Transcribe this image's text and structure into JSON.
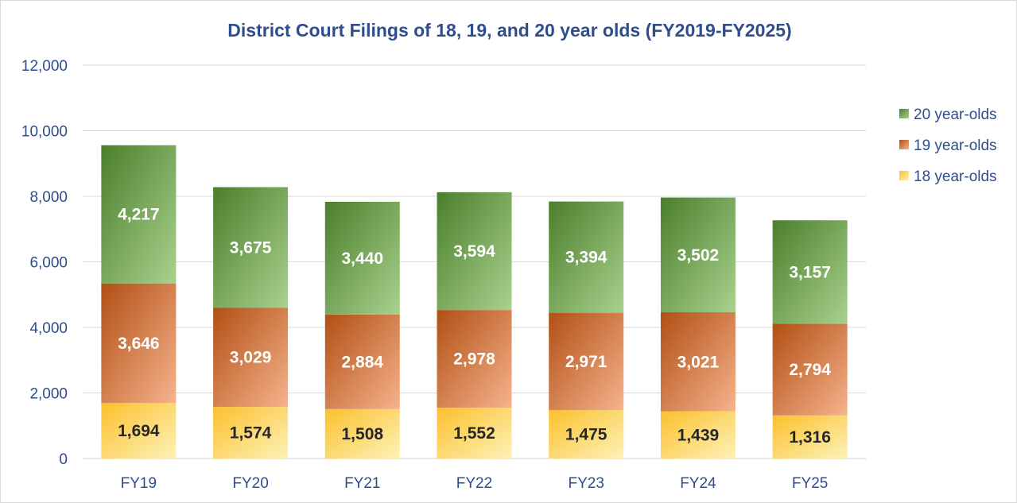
{
  "chart_data": {
    "type": "bar",
    "stacked": true,
    "title": "District Court Filings of 18, 19, and 20 year olds (FY2019-FY2025)",
    "categories": [
      "FY19",
      "FY20",
      "FY21",
      "FY22",
      "FY23",
      "FY24",
      "FY25"
    ],
    "series": [
      {
        "name": "18 year-olds",
        "values": [
          1694,
          1574,
          1508,
          1552,
          1475,
          1439,
          1316
        ],
        "labels": [
          "1,694",
          "1,574",
          "1,508",
          "1,552",
          "1,475",
          "1,439",
          "1,316"
        ],
        "color_light": "#fdf2b8",
        "color_dark": "#fbc02d"
      },
      {
        "name": "19 year-olds",
        "values": [
          3646,
          3029,
          2884,
          2978,
          2971,
          3021,
          2794
        ],
        "labels": [
          "3,646",
          "3,029",
          "2,884",
          "2,978",
          "2,971",
          "3,021",
          "2,794"
        ],
        "color_light": "#f6b38c",
        "color_dark": "#b14f14"
      },
      {
        "name": "20 year-olds",
        "values": [
          4217,
          3675,
          3440,
          3594,
          3394,
          3502,
          3157
        ],
        "labels": [
          "4,217",
          "3,675",
          "3,440",
          "3,594",
          "3,394",
          "3,502",
          "3,157"
        ],
        "color_light": "#a9d18e",
        "color_dark": "#4b7f2b"
      }
    ],
    "ylim": [
      0,
      12000
    ],
    "yticks": [
      0,
      2000,
      4000,
      6000,
      8000,
      10000,
      12000
    ],
    "ytick_labels": [
      "0",
      "2,000",
      "4,000",
      "6,000",
      "8,000",
      "10,000",
      "12,000"
    ],
    "xlabel": "",
    "ylabel": "",
    "grid": true,
    "legend_position": "right",
    "legend_order": [
      "20 year-olds",
      "19 year-olds",
      "18 year-olds"
    ],
    "colors": {
      "title": "#2f4d8c",
      "axis_text": "#2f4d8c",
      "grid": "#d9d9d9",
      "label_dark": "#262626",
      "label_light": "#ffffff"
    }
  }
}
